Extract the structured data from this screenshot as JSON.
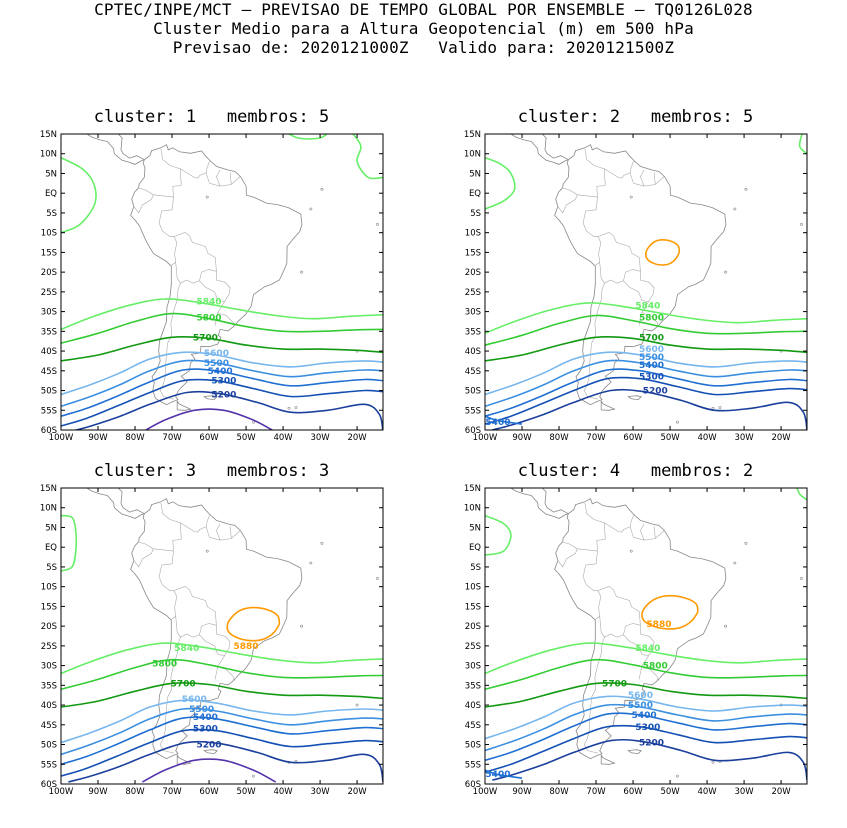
{
  "header": {
    "line1": "CPTEC/INPE/MCT – PREVISAO DE TEMPO GLOBAL POR ENSEMBLE – TQ0126L028",
    "line2": "Cluster Medio para a Altura Geopotencial (m) em 500 hPa",
    "line3": "Previsao de: 2020121000Z   Valido para: 2020121500Z"
  },
  "axes": {
    "lat_labels": [
      "15N",
      "10N",
      "5N",
      "EQ",
      "5S",
      "10S",
      "15S",
      "20S",
      "25S",
      "30S",
      "35S",
      "40S",
      "45S",
      "50S",
      "55S",
      "60S"
    ],
    "lon_labels": [
      "100W",
      "90W",
      "80W",
      "70W",
      "60W",
      "50W",
      "40W",
      "30W",
      "20W"
    ]
  },
  "colors": {
    "5880": "#ff9900",
    "5840": "#66ee66",
    "5800": "#33cc33",
    "5700": "#119911",
    "5600": "#77b7ee",
    "5500": "#3b8fe0",
    "5400": "#1f6fd2",
    "5300": "#1450b4",
    "5200": "#1a3f9c",
    "5100": "#5533aa",
    "coast": "#888888",
    "frame": "#000000"
  },
  "panels": [
    {
      "title": "cluster: 1   membros: 5",
      "contours": [
        {
          "level": "5840",
          "label": "5840",
          "label_lonlat": [
            -60,
            -27.5
          ]
        },
        {
          "level": "5800",
          "label": "5800",
          "label_lonlat": [
            -60,
            -31.5
          ]
        },
        {
          "level": "5700",
          "label": "5700",
          "label_lonlat": [
            -61,
            -36.5
          ]
        },
        {
          "level": "5600",
          "label": "5600",
          "label_lonlat": [
            -58,
            -40.5
          ]
        },
        {
          "level": "5500",
          "label": "5500",
          "label_lonlat": [
            -58,
            -43
          ]
        },
        {
          "level": "5400",
          "label": "5400",
          "label_lonlat": [
            -57,
            -45
          ]
        },
        {
          "level": "5300",
          "label": "5300",
          "label_lonlat": [
            -56,
            -47.5
          ]
        },
        {
          "level": "5200",
          "label": "5200",
          "label_lonlat": [
            -56,
            -51
          ]
        },
        {
          "level": "5100",
          "label": "",
          "label_lonlat": null
        }
      ]
    },
    {
      "title": "cluster: 2   membros: 5",
      "contours": [
        {
          "level": "5880",
          "label": "",
          "label_lonlat": null
        },
        {
          "level": "5840",
          "label": "5840",
          "label_lonlat": [
            -56,
            -28.5
          ]
        },
        {
          "level": "5800",
          "label": "5800",
          "label_lonlat": [
            -55,
            -31.5
          ]
        },
        {
          "level": "5700",
          "label": "5700",
          "label_lonlat": [
            -55,
            -36.5
          ]
        },
        {
          "level": "5600",
          "label": "5600",
          "label_lonlat": [
            -55,
            -39.5
          ]
        },
        {
          "level": "5500",
          "label": "5500",
          "label_lonlat": [
            -55,
            -41.5
          ]
        },
        {
          "level": "5400",
          "label": "5400",
          "label_lonlat": [
            -55,
            -43.5
          ]
        },
        {
          "level": "5300",
          "label": "5300",
          "label_lonlat": [
            -55,
            -46.5
          ]
        },
        {
          "level": "5200",
          "label": "5200",
          "label_lonlat": [
            -54,
            -50
          ]
        },
        {
          "level": "5400b",
          "label": "5400",
          "label_lonlat": [
            -96.5,
            -58
          ]
        }
      ]
    },
    {
      "title": "cluster: 3   membros: 3",
      "contours": [
        {
          "level": "5880",
          "label": "5880",
          "label_lonlat": [
            -50,
            -25
          ]
        },
        {
          "level": "5840",
          "label": "5840",
          "label_lonlat": [
            -66,
            -25.5
          ]
        },
        {
          "level": "5800",
          "label": "5800",
          "label_lonlat": [
            -72,
            -29.5
          ]
        },
        {
          "level": "5700",
          "label": "5700",
          "label_lonlat": [
            -67,
            -34.5
          ]
        },
        {
          "level": "5600",
          "label": "5600",
          "label_lonlat": [
            -64,
            -38.5
          ]
        },
        {
          "level": "5500",
          "label": "5500",
          "label_lonlat": [
            -62,
            -41
          ]
        },
        {
          "level": "5400",
          "label": "5400",
          "label_lonlat": [
            -61,
            -43
          ]
        },
        {
          "level": "5300",
          "label": "5300",
          "label_lonlat": [
            -61,
            -46
          ]
        },
        {
          "level": "5200",
          "label": "5200",
          "label_lonlat": [
            -60,
            -50
          ]
        },
        {
          "level": "5100",
          "label": "",
          "label_lonlat": null
        }
      ]
    },
    {
      "title": "cluster: 4   membros: 2",
      "contours": [
        {
          "level": "5880",
          "label": "5880",
          "label_lonlat": [
            -53,
            -19.5
          ]
        },
        {
          "level": "5840",
          "label": "5840",
          "label_lonlat": [
            -56,
            -25.5
          ]
        },
        {
          "level": "5800",
          "label": "5800",
          "label_lonlat": [
            -54,
            -30
          ]
        },
        {
          "level": "5700",
          "label": "5700",
          "label_lonlat": [
            -65,
            -34.5
          ]
        },
        {
          "level": "5600",
          "label": "5600",
          "label_lonlat": [
            -58,
            -37.5
          ]
        },
        {
          "level": "5500",
          "label": "5500",
          "label_lonlat": [
            -58,
            -40
          ]
        },
        {
          "level": "5400",
          "label": "5400",
          "label_lonlat": [
            -57,
            -42.5
          ]
        },
        {
          "level": "5300",
          "label": "5300",
          "label_lonlat": [
            -56,
            -45.5
          ]
        },
        {
          "level": "5200",
          "label": "5200",
          "label_lonlat": [
            -55,
            -49.5
          ]
        },
        {
          "level": "5400b",
          "label": "5400",
          "label_lonlat": [
            -96.5,
            -57.5
          ]
        }
      ]
    }
  ]
}
